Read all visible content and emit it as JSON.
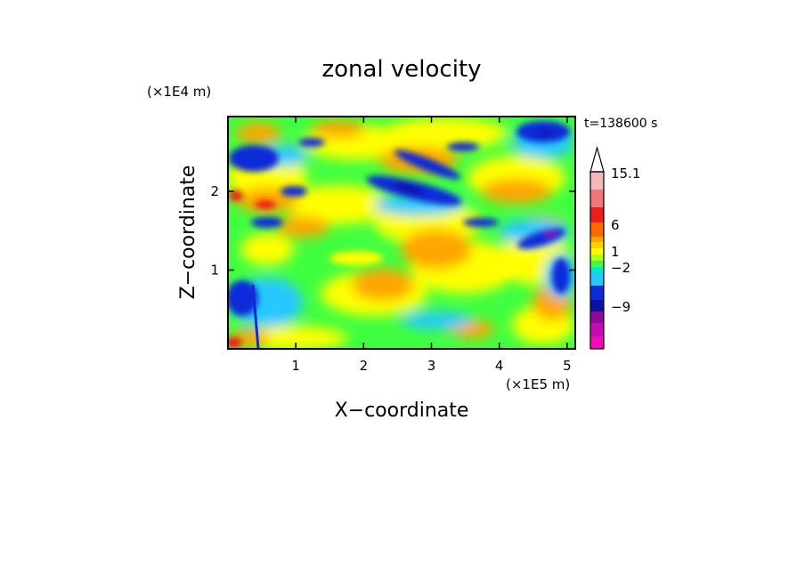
{
  "chart_data": {
    "type": "heatmap",
    "title": "zonal velocity",
    "xlabel": "X−coordinate",
    "ylabel": "Z−coordinate",
    "x_unit": "(×1E5 m)",
    "y_unit": "(×1E4 m)",
    "time_label": "t=138600 s",
    "xlim": [
      0,
      5.12
    ],
    "ylim": [
      0,
      2.95
    ],
    "x_ticks": [
      "1",
      "2",
      "3",
      "4",
      "5"
    ],
    "y_ticks": [
      "1",
      "2"
    ],
    "x_tick_values": [
      1,
      2,
      3,
      4,
      5
    ],
    "y_tick_values": [
      1,
      2
    ],
    "colorbar": {
      "tick_labels": [
        "15.1",
        "6",
        "1",
        "−2",
        "−9"
      ],
      "levels": [
        -15,
        -12,
        -9,
        -6,
        -4,
        -2,
        -1,
        0,
        1,
        2,
        3,
        4,
        6,
        9,
        12,
        15.1
      ],
      "colors": [
        "#f00cb8",
        "#c80ab4",
        "#8c0a96",
        "#1010a0",
        "#0f2bd8",
        "#26c8ff",
        "#00e6c8",
        "#40ff40",
        "#b4ff1a",
        "#ffff00",
        "#ffd200",
        "#ffa500",
        "#ff6a00",
        "#ee1c1c",
        "#f07878",
        "#f5b8b8"
      ]
    },
    "grid": false
  }
}
